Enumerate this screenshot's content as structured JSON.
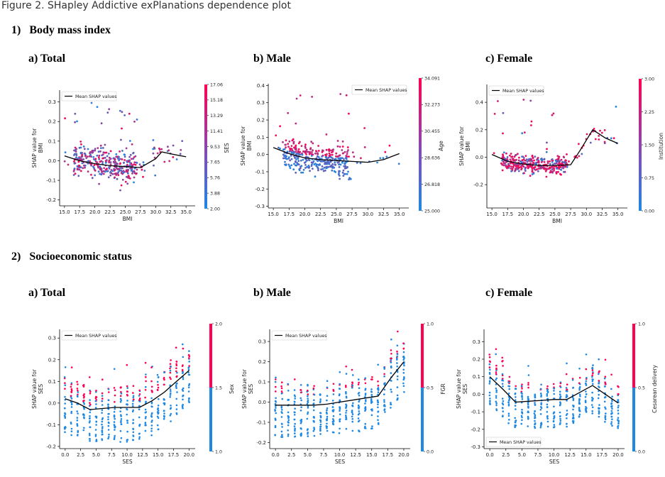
{
  "figure": {
    "caption": "Figure 2. SHapley Addictive exPlanations dependence plot",
    "sections": [
      {
        "num": "1)",
        "title": "Body mass index"
      },
      {
        "num": "2)",
        "title": "Socioeconomic status"
      }
    ],
    "subtitles": [
      "a) Total",
      "b) Male",
      "c) Female",
      "a) Total",
      "b) Male",
      "c) Female"
    ]
  },
  "colors": {
    "low": "#1e88e5",
    "high": "#ff0052",
    "mean_line": "#000000"
  },
  "chart_data": [
    {
      "type": "scatter",
      "id": "bmi-total",
      "xlabel": "BMI",
      "ylabel": "SHAP value for\nBMI",
      "xlim": [
        14.2,
        36.5
      ],
      "ylim": [
        -0.23,
        0.36
      ],
      "xticks": [
        15.0,
        17.5,
        20.0,
        22.5,
        25.0,
        27.5,
        30.0,
        32.5,
        35.0
      ],
      "yticks": [
        -0.2,
        -0.1,
        0.0,
        0.1,
        0.2,
        0.3
      ],
      "legend": "Mean SHAP values",
      "legend_position": "upper-left",
      "mean_shap": {
        "x": [
          15.0,
          17.5,
          20.0,
          22.5,
          25.0,
          27.5,
          30.0,
          31.0,
          32.5,
          35.0
        ],
        "y": [
          0.025,
          0.0,
          -0.015,
          -0.025,
          -0.03,
          -0.035,
          0.01,
          0.045,
          0.035,
          0.02
        ]
      },
      "colorbar": {
        "label": "SES",
        "ticks": [
          "2.00",
          "3.88",
          "5.76",
          "7.65",
          "9.53",
          "11.41",
          "13.29",
          "15.18",
          "17.06"
        ]
      },
      "scatter": {
        "x_range": [
          15.0,
          35.0
        ],
        "x_dense": [
          16.5,
          27.0
        ],
        "y_spread": 0.09,
        "y_max": 0.33,
        "y_min": -0.22,
        "color_mode": "mixed"
      }
    },
    {
      "type": "scatter",
      "id": "bmi-male",
      "xlabel": "BMI",
      "ylabel": "SHAP value for\nBMI",
      "xlim": [
        14.2,
        36.5
      ],
      "ylim": [
        -0.31,
        0.41
      ],
      "xticks": [
        15.0,
        17.5,
        20.0,
        22.5,
        25.0,
        27.5,
        30.0,
        32.5,
        35.0
      ],
      "yticks": [
        -0.3,
        -0.2,
        -0.1,
        0.0,
        0.1,
        0.2,
        0.3,
        0.4
      ],
      "legend": "Mean SHAP values",
      "legend_position": "upper-right",
      "mean_shap": {
        "x": [
          15.0,
          17.5,
          20.0,
          22.5,
          25.0,
          27.5,
          30.0,
          32.5,
          35.0
        ],
        "y": [
          0.04,
          0.005,
          -0.02,
          -0.03,
          -0.035,
          -0.04,
          -0.045,
          -0.03,
          0.005
        ]
      },
      "colorbar": {
        "label": "Age",
        "ticks": [
          "25.000",
          "26.818",
          "28.636",
          "30.455",
          "32.273",
          "34.091"
        ]
      },
      "scatter": {
        "x_range": [
          15.0,
          35.0
        ],
        "x_dense": [
          16.5,
          27.0
        ],
        "y_spread": 0.1,
        "y_max": 0.36,
        "y_min": -0.29,
        "color_mode": "split"
      }
    },
    {
      "type": "scatter",
      "id": "bmi-female",
      "xlabel": "BMI",
      "ylabel": "SHAP value for\nBMI",
      "xlim": [
        14.2,
        36.5
      ],
      "ylim": [
        -0.37,
        0.53
      ],
      "xticks": [
        15.0,
        17.5,
        20.0,
        22.5,
        25.0,
        27.5,
        30.0,
        32.5,
        35.0
      ],
      "yticks": [
        -0.2,
        0.0,
        0.2,
        0.4
      ],
      "legend": "Mean SHAP values",
      "legend_position": "upper-left",
      "mean_shap": {
        "x": [
          15.0,
          17.5,
          20.0,
          22.5,
          25.0,
          27.5,
          29.0,
          31.0,
          33.0,
          35.0
        ],
        "y": [
          0.02,
          -0.03,
          -0.05,
          -0.06,
          -0.06,
          -0.055,
          0.05,
          0.2,
          0.14,
          0.1
        ]
      },
      "colorbar": {
        "label": "Institution",
        "ticks": [
          "0.00",
          "0.75",
          "1.50",
          "2.25",
          "3.00"
        ]
      },
      "scatter": {
        "x_range": [
          15.0,
          35.0
        ],
        "x_dense": [
          16.5,
          27.0
        ],
        "y_spread": 0.08,
        "y_max": 0.45,
        "y_min": -0.3,
        "color_mode": "mostly-high"
      }
    },
    {
      "type": "scatter",
      "id": "ses-total",
      "xlabel": "SES",
      "ylabel": "SHAP value for\nSES",
      "xlim": [
        -0.9,
        21.0
      ],
      "ylim": [
        -0.21,
        0.34
      ],
      "xticks": [
        0.0,
        2.5,
        5.0,
        7.5,
        10.0,
        12.5,
        15.0,
        17.5,
        20.0
      ],
      "yticks": [
        -0.2,
        -0.1,
        0.0,
        0.1,
        0.2,
        0.3
      ],
      "legend": "Mean SHAP values",
      "legend_position": "upper-left",
      "mean_shap": {
        "x": [
          0.0,
          2.0,
          4.0,
          6.0,
          8.0,
          10.0,
          12.0,
          14.0,
          16.0,
          18.0,
          20.0
        ],
        "y": [
          0.02,
          0.0,
          -0.03,
          -0.025,
          -0.02,
          -0.02,
          -0.02,
          0.01,
          0.05,
          0.1,
          0.15
        ]
      },
      "colorbar": {
        "label": "Sex",
        "ticks": [
          "1.0",
          "1.5",
          "2.0"
        ]
      },
      "scatter": {
        "columns": [
          0,
          1,
          2,
          3,
          4,
          5,
          6,
          7,
          8,
          9,
          10,
          11,
          12,
          13,
          14,
          15,
          16,
          17,
          18,
          19,
          20
        ],
        "y_min": -0.18,
        "y_max": 0.32,
        "color_mode": "binary"
      }
    },
    {
      "type": "scatter",
      "id": "ses-male",
      "xlabel": "SES",
      "ylabel": "SHAP value for\nSES",
      "xlim": [
        -0.9,
        21.0
      ],
      "ylim": [
        -0.23,
        0.36
      ],
      "xticks": [
        0.0,
        2.5,
        5.0,
        7.5,
        10.0,
        12.5,
        15.0,
        17.5,
        20.0
      ],
      "yticks": [
        -0.2,
        -0.1,
        0.0,
        0.1,
        0.2,
        0.3
      ],
      "legend": "Mean SHAP values",
      "legend_position": "upper-left",
      "mean_shap": {
        "x": [
          0.0,
          2.0,
          4.0,
          6.0,
          8.0,
          10.0,
          12.0,
          14.0,
          16.0,
          18.0,
          20.0
        ],
        "y": [
          -0.015,
          -0.015,
          -0.015,
          -0.015,
          -0.01,
          0.0,
          0.01,
          0.02,
          0.03,
          0.12,
          0.2
        ]
      },
      "colorbar": {
        "label": "FGR",
        "ticks": [
          "0.0",
          "0.5",
          "1.0"
        ]
      },
      "scatter": {
        "columns": [
          0,
          1,
          2,
          3,
          4,
          5,
          6,
          7,
          8,
          9,
          10,
          11,
          12,
          13,
          14,
          15,
          16,
          17,
          18,
          19,
          20
        ],
        "y_min": -0.2,
        "y_max": 0.35,
        "color_mode": "binary-low"
      }
    },
    {
      "type": "scatter",
      "id": "ses-female",
      "xlabel": "SES",
      "ylabel": "SHAP value for\nSES",
      "xlim": [
        -0.9,
        21.0
      ],
      "ylim": [
        -0.31,
        0.37
      ],
      "xticks": [
        0.0,
        2.5,
        5.0,
        7.5,
        10.0,
        12.5,
        15.0,
        17.5,
        20.0
      ],
      "yticks": [
        -0.3,
        -0.2,
        -0.1,
        0.0,
        0.1,
        0.2,
        0.3
      ],
      "legend": "Mean SHAP values",
      "legend_position": "lower-left",
      "mean_shap": {
        "x": [
          0.0,
          2.0,
          4.0,
          6.0,
          8.0,
          10.0,
          12.0,
          14.0,
          16.0,
          18.0,
          20.0
        ],
        "y": [
          0.1,
          0.03,
          -0.045,
          -0.04,
          -0.035,
          -0.03,
          -0.03,
          0.01,
          0.05,
          0.0,
          -0.05
        ]
      },
      "colorbar": {
        "label": "Cesarean delivery",
        "ticks": [
          "0.0",
          "0.5",
          "1.0"
        ]
      },
      "scatter": {
        "columns": [
          0,
          1,
          2,
          3,
          4,
          5,
          6,
          7,
          8,
          9,
          10,
          11,
          12,
          13,
          14,
          15,
          16,
          17,
          18,
          19,
          20
        ],
        "y_min": -0.26,
        "y_max": 0.34,
        "color_mode": "binary-low"
      }
    }
  ]
}
